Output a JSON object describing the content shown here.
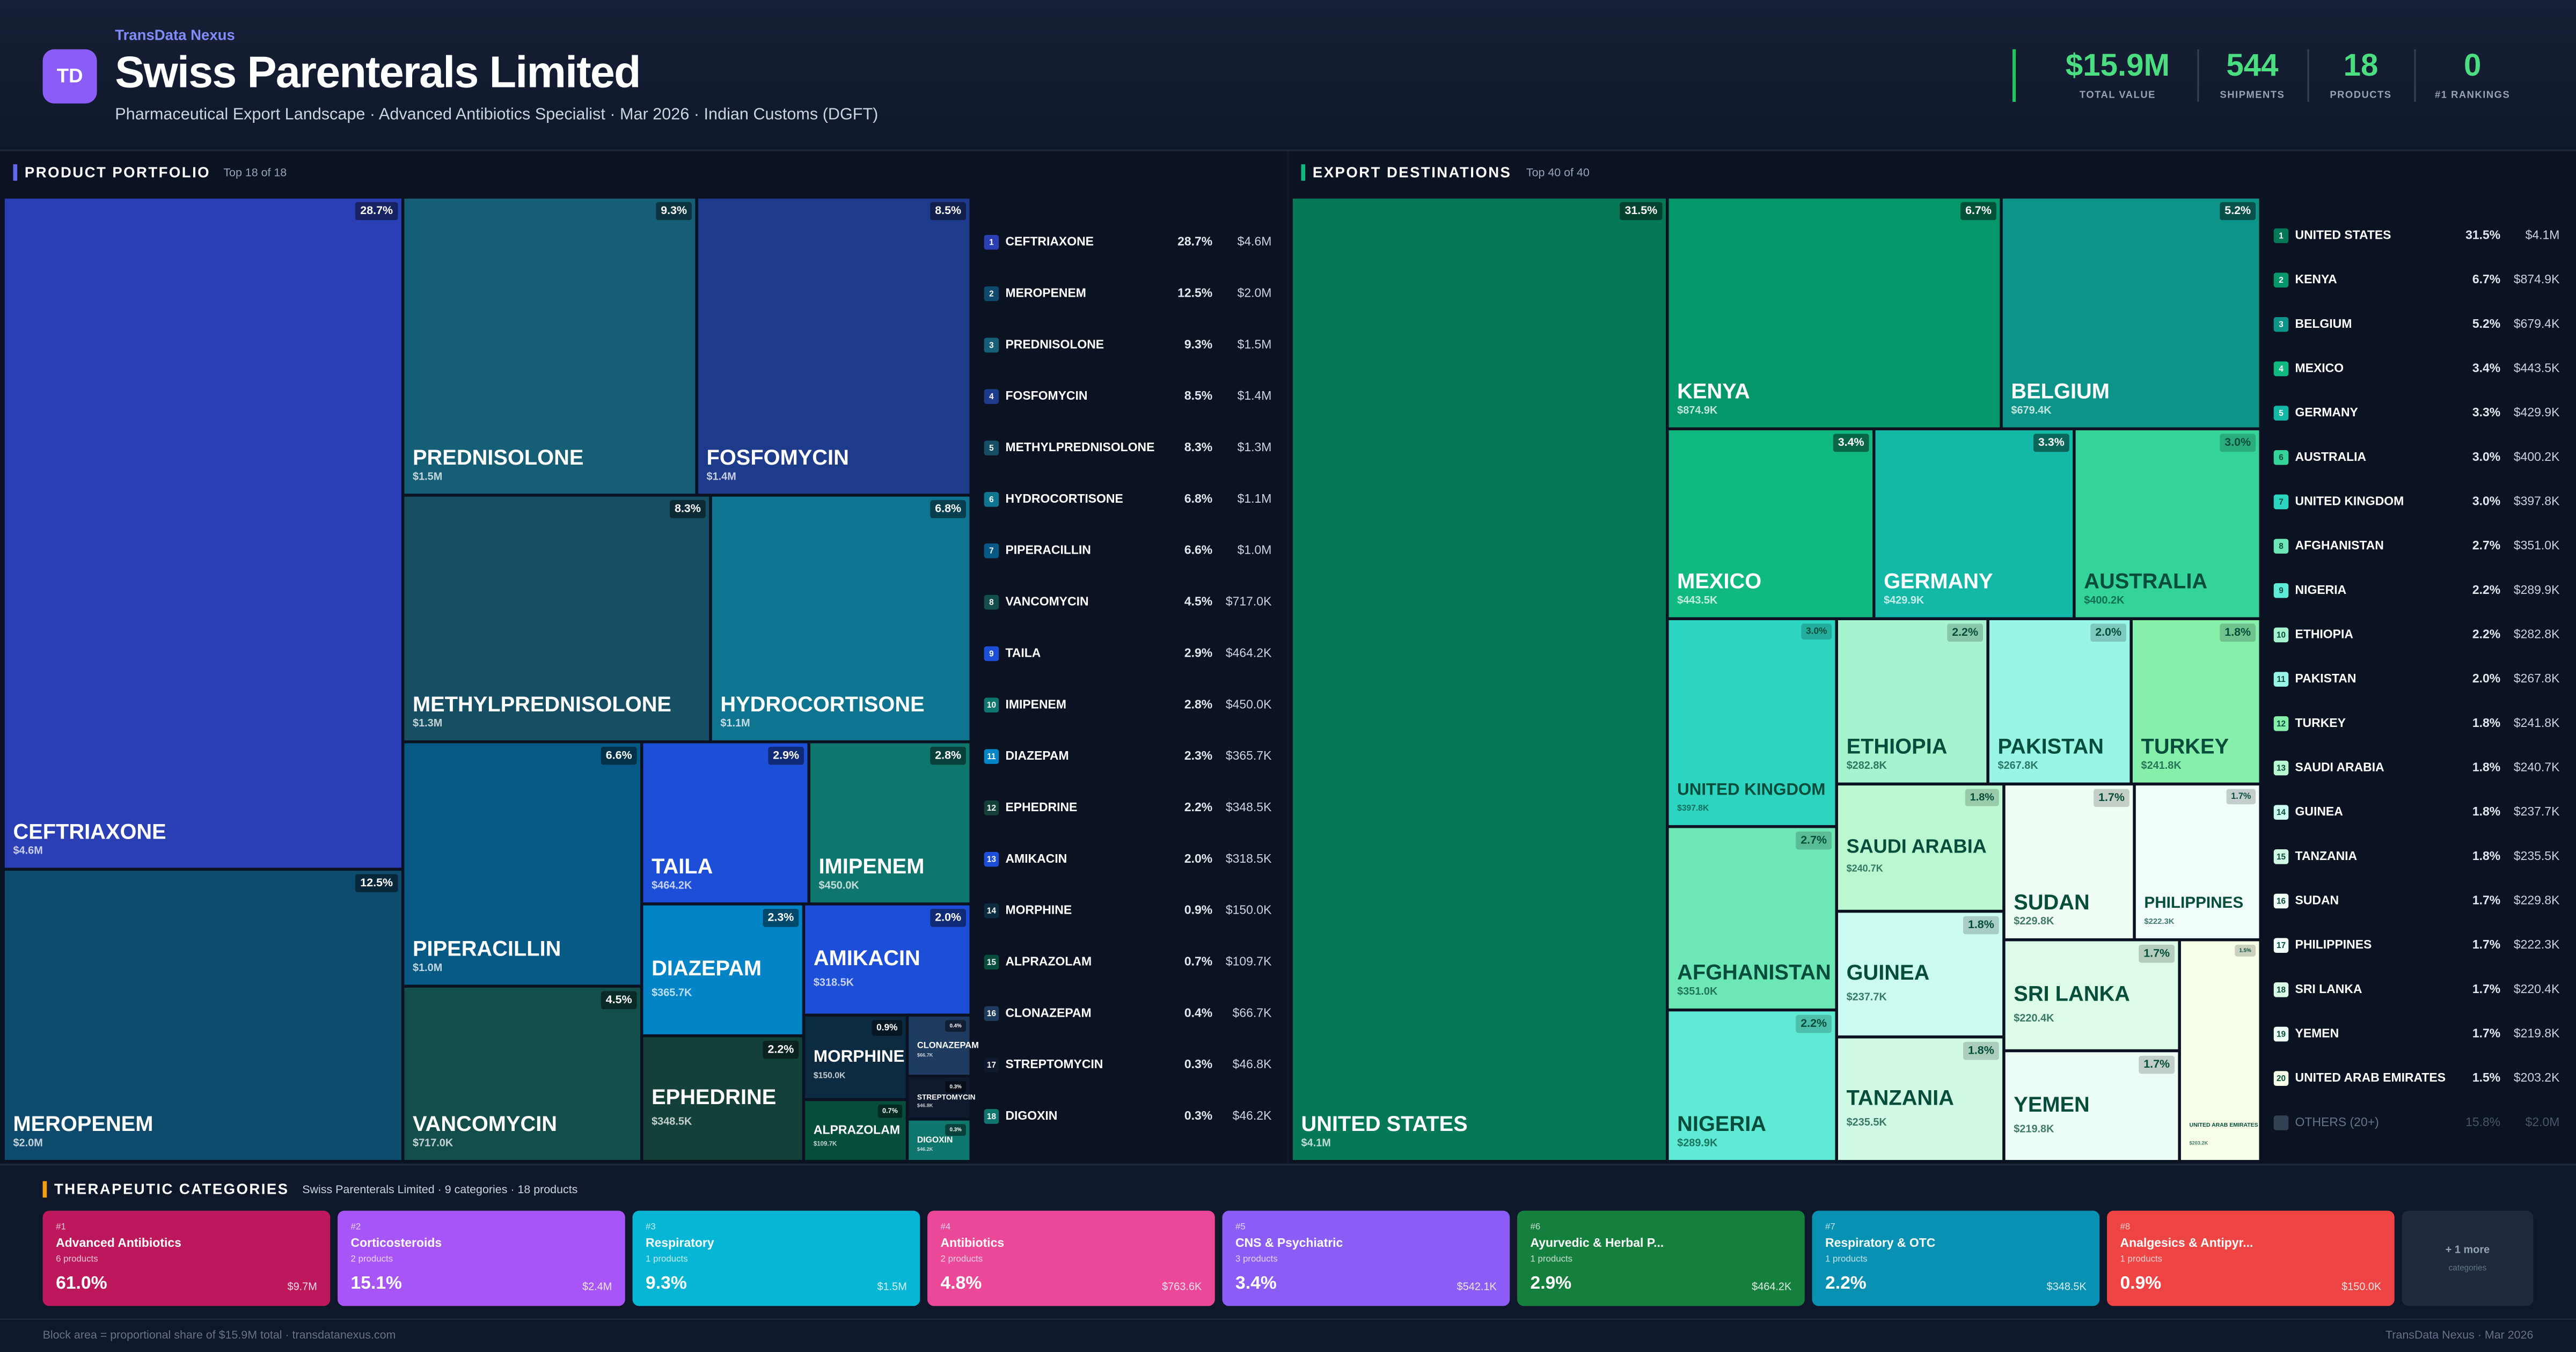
{
  "header": {
    "brand": "TransData Nexus",
    "logo": "TD",
    "title": "Swiss Parenterals Limited",
    "subtitle": "Pharmaceutical Export Landscape · Advanced Antibiotics Specialist · Mar 2026 · Indian Customs (DGFT)"
  },
  "kpis": [
    {
      "value": "$15.9M",
      "label": "TOTAL VALUE"
    },
    {
      "value": "544",
      "label": "SHIPMENTS"
    },
    {
      "value": "18",
      "label": "PRODUCTS"
    },
    {
      "value": "0",
      "label": "#1 RANKINGS"
    }
  ],
  "chart_data": [
    {
      "type": "treemap",
      "title": "PRODUCT PORTFOLIO",
      "subtitle": "Top 18 of 18",
      "categories": [
        "CEFTRIAXONE",
        "MEROPENEM",
        "PREDNISOLONE",
        "FOSFOMYCIN",
        "METHYLPREDNISOLONE",
        "HYDROCORTISONE",
        "PIPERACILLIN",
        "VANCOMYCIN",
        "TAILA",
        "IMIPENEM",
        "DIAZEPAM",
        "EPHEDRINE",
        "AMIKACIN",
        "MORPHINE",
        "ALPRAZOLAM",
        "CLONAZEPAM",
        "STREPTOMYCIN",
        "DIGOXIN"
      ],
      "ranks": [
        1,
        2,
        3,
        4,
        5,
        6,
        7,
        8,
        9,
        10,
        11,
        12,
        13,
        14,
        15,
        16,
        17,
        18
      ],
      "values": [
        4600000,
        2000000,
        1500000,
        1400000,
        1300000,
        1100000,
        1000000,
        717000,
        464200,
        450000,
        365700,
        348500,
        318500,
        150000,
        109700,
        66700,
        46800,
        46200
      ],
      "value_labels": [
        "$4.6M",
        "$2.0M",
        "$1.5M",
        "$1.4M",
        "$1.3M",
        "$1.1M",
        "$1.0M",
        "$717.0K",
        "$464.2K",
        "$450.0K",
        "$365.7K",
        "$348.5K",
        "$318.5K",
        "$150.0K",
        "$109.7K",
        "$66.7K",
        "$46.8K",
        "$46.2K"
      ],
      "shares": [
        28.7,
        12.5,
        9.3,
        8.5,
        8.3,
        6.8,
        6.6,
        4.5,
        2.9,
        2.8,
        2.3,
        2.2,
        2.0,
        0.9,
        0.7,
        0.4,
        0.3,
        0.3
      ],
      "share_labels": [
        "28.7%",
        "12.5%",
        "9.3%",
        "8.5%",
        "8.3%",
        "6.8%",
        "6.6%",
        "4.5%",
        "2.9%",
        "2.8%",
        "2.3%",
        "2.2%",
        "2.0%",
        "0.9%",
        "0.7%",
        "0.4%",
        "0.3%",
        "0.3%"
      ],
      "colors": [
        "#2b3fb4",
        "#0d4a6b",
        "#155e75",
        "#1e3a8a",
        "#164e63",
        "#0e7490",
        "#075985",
        "#134e4a",
        "#1d4ed8",
        "#0f766e",
        "#0284c7",
        "#14403a",
        "#1d4ed8",
        "#0c2a40",
        "#064e3b",
        "#1e3a5f",
        "#0f1a2e",
        "#0f766e"
      ]
    },
    {
      "type": "treemap",
      "title": "EXPORT DESTINATIONS",
      "subtitle": "Top 40 of 40",
      "categories": [
        "UNITED STATES",
        "KENYA",
        "BELGIUM",
        "MEXICO",
        "GERMANY",
        "AUSTRALIA",
        "UNITED KINGDOM",
        "AFGHANISTAN",
        "NIGERIA",
        "ETHIOPIA",
        "PAKISTAN",
        "TURKEY",
        "SAUDI ARABIA",
        "GUINEA",
        "TANZANIA",
        "SUDAN",
        "PHILIPPINES",
        "SRI LANKA",
        "YEMEN",
        "UNITED ARAB EMIRATES"
      ],
      "ranks": [
        1,
        2,
        3,
        4,
        5,
        6,
        7,
        8,
        9,
        10,
        11,
        12,
        13,
        14,
        15,
        16,
        17,
        18,
        19,
        20
      ],
      "values": [
        4100000,
        874900,
        679400,
        443500,
        429900,
        400200,
        397800,
        351000,
        289900,
        282800,
        267800,
        241800,
        240700,
        237700,
        235500,
        229800,
        222300,
        220400,
        219800,
        203200
      ],
      "value_labels": [
        "$4.1M",
        "$874.9K",
        "$679.4K",
        "$443.5K",
        "$429.9K",
        "$400.2K",
        "$397.8K",
        "$351.0K",
        "$289.9K",
        "$282.8K",
        "$267.8K",
        "$241.8K",
        "$240.7K",
        "$237.7K",
        "$235.5K",
        "$229.8K",
        "$222.3K",
        "$220.4K",
        "$219.8K",
        "$203.2K"
      ],
      "shares": [
        31.5,
        6.7,
        5.2,
        3.4,
        3.3,
        3.0,
        3.0,
        2.7,
        2.2,
        2.2,
        2.0,
        1.8,
        1.8,
        1.8,
        1.8,
        1.7,
        1.7,
        1.7,
        1.7,
        1.5
      ],
      "share_labels": [
        "31.5%",
        "6.7%",
        "5.2%",
        "3.4%",
        "3.3%",
        "3.0%",
        "3.0%",
        "2.7%",
        "2.2%",
        "2.2%",
        "2.0%",
        "1.8%",
        "1.8%",
        "1.8%",
        "1.8%",
        "1.7%",
        "1.7%",
        "1.7%",
        "1.7%",
        "1.5%"
      ],
      "colors": [
        "#047857",
        "#059669",
        "#0d9488",
        "#10b981",
        "#14b8a6",
        "#34d399",
        "#2dd4bf",
        "#6ee7b7",
        "#5eead4",
        "#a7f3d0",
        "#99f6e4",
        "#86efac",
        "#bbf7d0",
        "#ccfbf1",
        "#d1fae5",
        "#f0fdf4",
        "#f0fdfa",
        "#dcfce7",
        "#ecfdf5",
        "#f7fee7"
      ],
      "others": {
        "label": "OTHERS (20+)",
        "share": "15.8%",
        "value": "$2.0M"
      }
    }
  ],
  "categories_panel": {
    "title": "THERAPEUTIC CATEGORIES",
    "subtitle": "Swiss Parenterals Limited · 9 categories · 18 products",
    "cards": [
      {
        "rank": "#1",
        "name": "Advanced Antibiotics",
        "count": "6 products",
        "share": "61.0%",
        "value": "$9.7M",
        "color": "#be185d"
      },
      {
        "rank": "#2",
        "name": "Corticosteroids",
        "count": "2 products",
        "share": "15.1%",
        "value": "$2.4M",
        "color": "#a855f7"
      },
      {
        "rank": "#3",
        "name": "Respiratory",
        "count": "1 products",
        "share": "9.3%",
        "value": "$1.5M",
        "color": "#06b6d4"
      },
      {
        "rank": "#4",
        "name": "Antibiotics",
        "count": "2 products",
        "share": "4.8%",
        "value": "$763.6K",
        "color": "#ec4899"
      },
      {
        "rank": "#5",
        "name": "CNS & Psychiatric",
        "count": "3 products",
        "share": "3.4%",
        "value": "$542.1K",
        "color": "#8b5cf6"
      },
      {
        "rank": "#6",
        "name": "Ayurvedic & Herbal P...",
        "count": "1 products",
        "share": "2.9%",
        "value": "$464.2K",
        "color": "#15803d"
      },
      {
        "rank": "#7",
        "name": "Respiratory & OTC",
        "count": "1 products",
        "share": "2.2%",
        "value": "$348.5K",
        "color": "#0891b2"
      },
      {
        "rank": "#8",
        "name": "Analgesics & Antipyr...",
        "count": "1 products",
        "share": "0.9%",
        "value": "$150.0K",
        "color": "#ef4444"
      }
    ],
    "more": {
      "label": "+ 1 more",
      "sub": "categories"
    }
  },
  "footer": {
    "left": "Block area = proportional share of $15.9M total · transdatanexus.com",
    "right": "TransData Nexus · Mar 2026"
  }
}
